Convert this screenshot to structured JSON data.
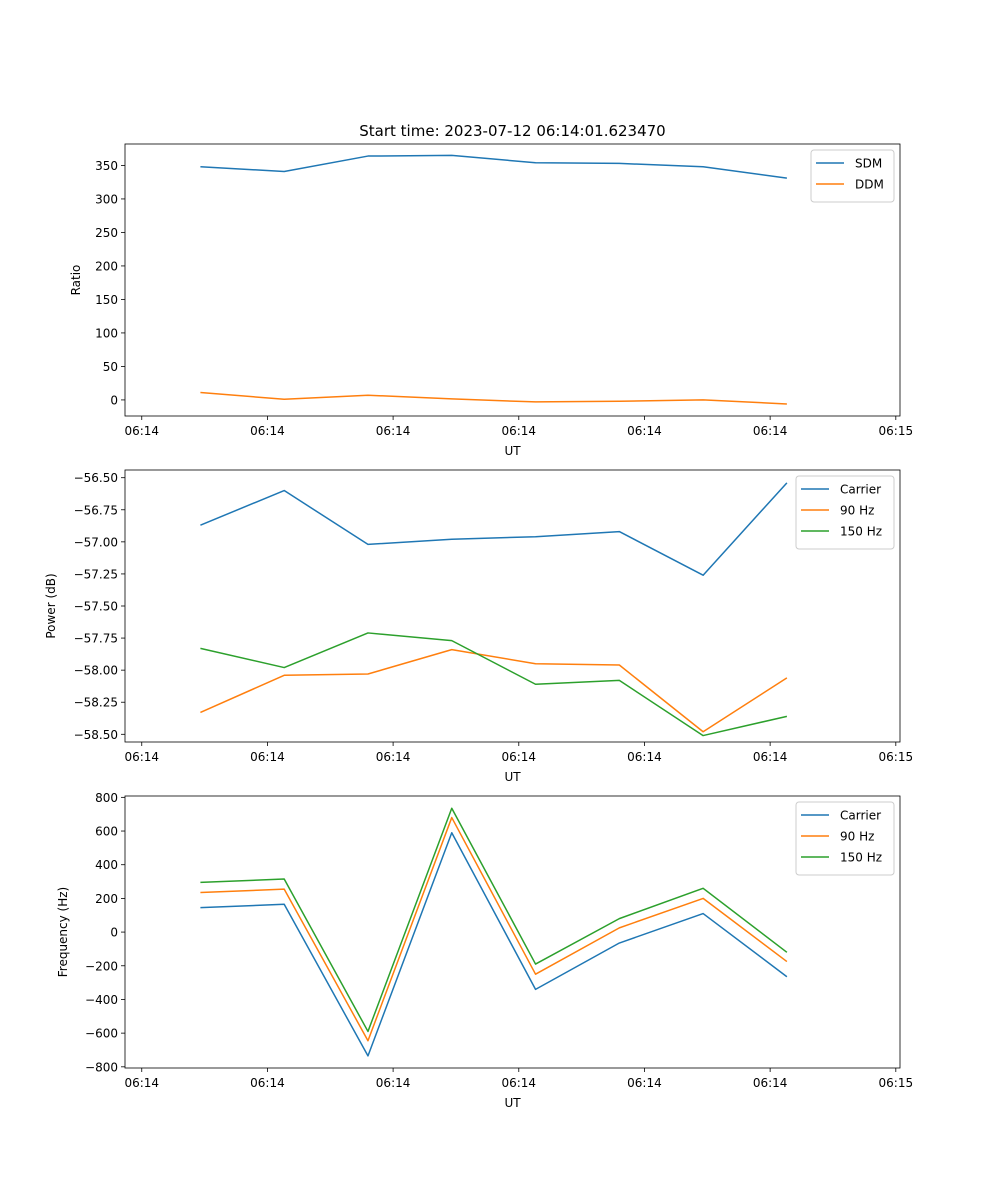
{
  "figure_title": "Start time: 2023-07-12 06:14:01.623470",
  "colors": {
    "blue": "#1f77b4",
    "orange": "#ff7f0e",
    "green": "#2ca02c"
  },
  "chart_data": [
    {
      "type": "line",
      "title": "Start time: 2023-07-12 06:14:01.623470",
      "xlabel": "UT",
      "ylabel": "Ratio",
      "xlim": [
        0,
        9.25
      ],
      "ylim": [
        -24,
        382
      ],
      "x_ticks": [
        0.2,
        1.7,
        3.2,
        4.7,
        6.2,
        7.7,
        9.2
      ],
      "x_tick_labels": [
        "06:14",
        "06:14",
        "06:14",
        "06:14",
        "06:14",
        "06:14",
        "06:15"
      ],
      "y_ticks": [
        0,
        50,
        100,
        150,
        200,
        250,
        300,
        350
      ],
      "y_tick_labels": [
        "0",
        "50",
        "100",
        "150",
        "200",
        "250",
        "300",
        "350"
      ],
      "legend_position": "top-right",
      "x": [
        0.9,
        1.9,
        2.9,
        3.9,
        4.9,
        5.9,
        6.9,
        7.9
      ],
      "series": [
        {
          "name": "SDM",
          "color": "#1f77b4",
          "values": [
            348,
            341,
            364,
            365,
            354,
            353,
            348,
            331
          ]
        },
        {
          "name": "DDM",
          "color": "#ff7f0e",
          "values": [
            11,
            1,
            7,
            1.5,
            -3,
            -2,
            0,
            -6
          ]
        }
      ]
    },
    {
      "type": "line",
      "title": "",
      "xlabel": "UT",
      "ylabel": "Power (dB)",
      "xlim": [
        0,
        9.25
      ],
      "ylim": [
        -58.56,
        -56.44
      ],
      "x_ticks": [
        0.2,
        1.7,
        3.2,
        4.7,
        6.2,
        7.7,
        9.2
      ],
      "x_tick_labels": [
        "06:14",
        "06:14",
        "06:14",
        "06:14",
        "06:14",
        "06:14",
        "06:15"
      ],
      "y_ticks": [
        -58.5,
        -58.25,
        -58.0,
        -57.75,
        -57.5,
        -57.25,
        -57.0,
        -56.75,
        -56.5
      ],
      "y_tick_labels": [
        "−58.50",
        "−58.25",
        "−58.00",
        "−57.75",
        "−57.50",
        "−57.25",
        "−57.00",
        "−56.75",
        "−56.50"
      ],
      "legend_position": "top-right",
      "x": [
        0.9,
        1.9,
        2.9,
        3.9,
        4.9,
        5.9,
        6.9,
        7.9
      ],
      "series": [
        {
          "name": "Carrier",
          "color": "#1f77b4",
          "values": [
            -56.87,
            -56.6,
            -57.02,
            -56.98,
            -56.96,
            -56.92,
            -57.26,
            -56.54
          ]
        },
        {
          "name": "90 Hz",
          "color": "#ff7f0e",
          "values": [
            -58.33,
            -58.04,
            -58.03,
            -57.84,
            -57.95,
            -57.96,
            -58.48,
            -58.06
          ]
        },
        {
          "name": "150 Hz",
          "color": "#2ca02c",
          "values": [
            -57.83,
            -57.98,
            -57.71,
            -57.77,
            -58.11,
            -58.08,
            -58.51,
            -58.36
          ]
        }
      ]
    },
    {
      "type": "line",
      "title": "",
      "xlabel": "UT",
      "ylabel": "Frequency (Hz)",
      "xlim": [
        0,
        9.25
      ],
      "ylim": [
        -807,
        808
      ],
      "x_ticks": [
        0.2,
        1.7,
        3.2,
        4.7,
        6.2,
        7.7,
        9.2
      ],
      "x_tick_labels": [
        "06:14",
        "06:14",
        "06:14",
        "06:14",
        "06:14",
        "06:14",
        "06:15"
      ],
      "y_ticks": [
        -800,
        -600,
        -400,
        -200,
        0,
        200,
        400,
        600,
        800
      ],
      "y_tick_labels": [
        "−800",
        "−600",
        "−400",
        "−200",
        "0",
        "200",
        "400",
        "600",
        "800"
      ],
      "legend_position": "top-right",
      "x": [
        0.9,
        1.9,
        2.9,
        3.9,
        4.9,
        5.9,
        6.9,
        7.9
      ],
      "series": [
        {
          "name": "Carrier",
          "color": "#1f77b4",
          "values": [
            145,
            165,
            -735,
            590,
            -340,
            -65,
            110,
            -265
          ]
        },
        {
          "name": "90 Hz",
          "color": "#ff7f0e",
          "values": [
            235,
            255,
            -645,
            680,
            -250,
            25,
            200,
            -175
          ]
        },
        {
          "name": "150 Hz",
          "color": "#2ca02c",
          "values": [
            295,
            315,
            -590,
            735,
            -190,
            80,
            260,
            -120
          ]
        }
      ]
    }
  ]
}
